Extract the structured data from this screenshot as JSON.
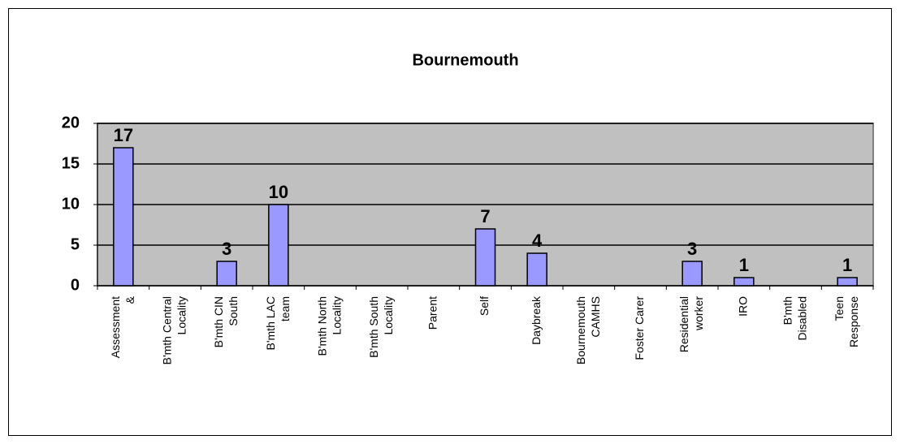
{
  "chart_data": {
    "type": "bar",
    "title": "Bournemouth",
    "categories": [
      "Assessment\n&",
      "B'mth Central\nLocality",
      "B'mth CIN\nSouth",
      "B'mth LAC\nteam",
      "B'mth North\nLocality",
      "B'mth South\nLocality",
      "Parent",
      "Self",
      "Daybreak",
      "Bournemouth\nCAMHS",
      "Foster Carer",
      "Residential\nworker",
      "IRO",
      "B'mth\nDisabled",
      "Teen\nResponse"
    ],
    "values": [
      17,
      0,
      3,
      10,
      0,
      0,
      0,
      7,
      4,
      0,
      0,
      3,
      1,
      0,
      1
    ],
    "color": "#9999ff",
    "plot_background": "#c0c0c0",
    "ylim": [
      0,
      20
    ],
    "yticks": [
      0,
      5,
      10,
      15,
      20
    ],
    "grid": true
  }
}
